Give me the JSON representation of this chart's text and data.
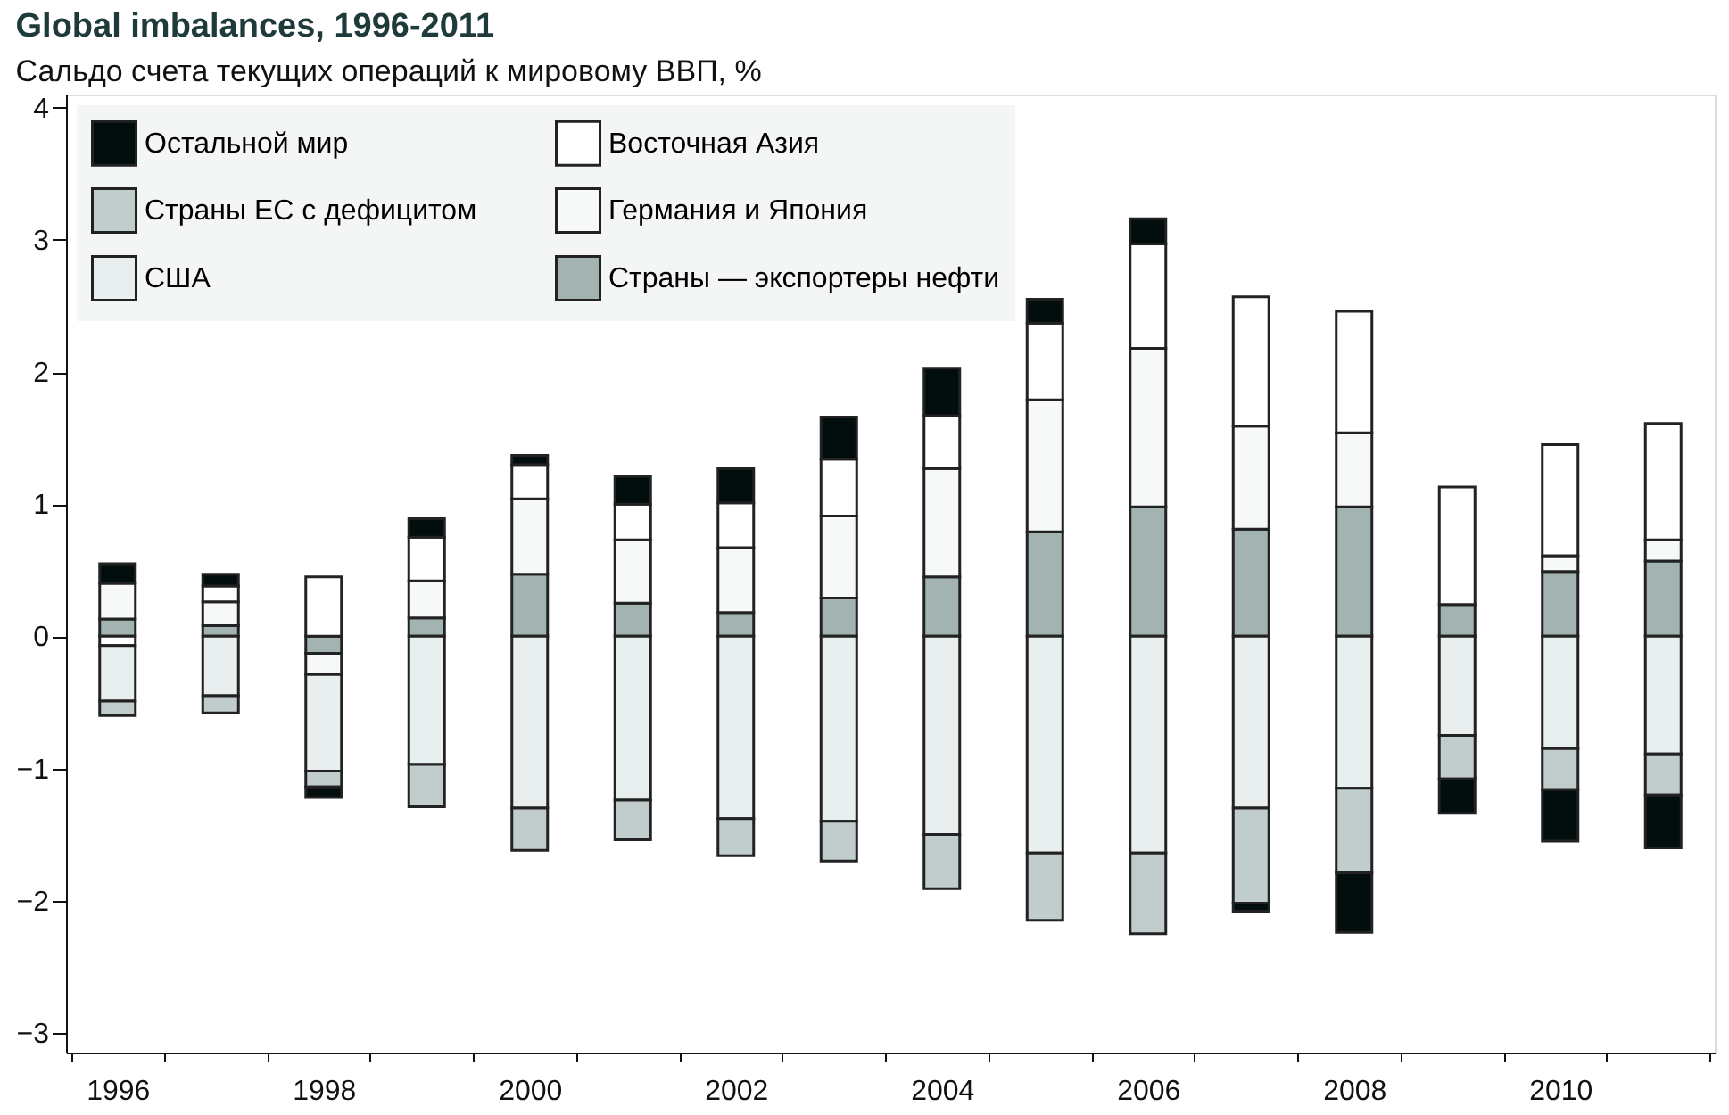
{
  "chart_data": {
    "type": "bar",
    "stacked": true,
    "title": "Global imbalances, 1996-2011",
    "subtitle": "Сальдо счета текущих операций к мировому ВВП, %",
    "categories": [
      "1996",
      null,
      "1998",
      null,
      "2000",
      null,
      "2002",
      null,
      "2004",
      null,
      "2006",
      null,
      "2008",
      null,
      "2010",
      null
    ],
    "series": [
      {
        "name": "Страны — экспортеры нефти",
        "color": "#a3b3b2",
        "values": [
          0.13,
          0.08,
          -0.13,
          0.14,
          0.47,
          0.25,
          0.18,
          0.29,
          0.45,
          0.79,
          0.98,
          0.81,
          0.98,
          0.24,
          0.49,
          0.57
        ]
      },
      {
        "name": "Германия и Япония",
        "color": "#f7f9f9",
        "values": [
          0.27,
          0.18,
          -0.16,
          0.28,
          0.57,
          0.48,
          0.49,
          0.62,
          0.82,
          1.0,
          1.2,
          0.78,
          0.56,
          null,
          0.12,
          0.16
        ]
      },
      {
        "name": "Восточная Азия",
        "color": "#ffffff",
        "values": [
          -0.07,
          0.12,
          0.45,
          0.33,
          0.26,
          0.27,
          0.34,
          0.43,
          0.4,
          0.58,
          0.79,
          0.98,
          0.92,
          0.89,
          0.84,
          0.88
        ]
      },
      {
        "name": "США",
        "color": "#e9efef",
        "values": [
          -0.42,
          -0.45,
          -0.73,
          -0.97,
          -1.3,
          -1.24,
          -1.38,
          -1.4,
          -1.5,
          -1.64,
          -1.64,
          -1.3,
          -1.15,
          -0.75,
          -0.85,
          -0.89
        ]
      },
      {
        "name": "Страны ЕС с дефицитом",
        "color": "#c1cdcc",
        "values": [
          -0.11,
          -0.13,
          -0.12,
          -0.32,
          -0.32,
          -0.3,
          -0.28,
          -0.3,
          -0.41,
          -0.51,
          -0.61,
          -0.72,
          -0.64,
          -0.33,
          -0.31,
          -0.31
        ]
      },
      {
        "name": "Остальной мир",
        "color": "#020e0e",
        "values": [
          0.15,
          0.09,
          -0.08,
          0.14,
          0.07,
          0.21,
          0.26,
          0.32,
          0.36,
          0.18,
          0.19,
          -0.06,
          -0.45,
          -0.26,
          -0.39,
          -0.4
        ]
      }
    ],
    "ylim": [
      -3.15,
      4.1
    ],
    "yticks": [
      -3,
      -2,
      -1,
      0,
      1,
      2,
      3,
      4
    ],
    "grid": false,
    "legend": "top left"
  }
}
